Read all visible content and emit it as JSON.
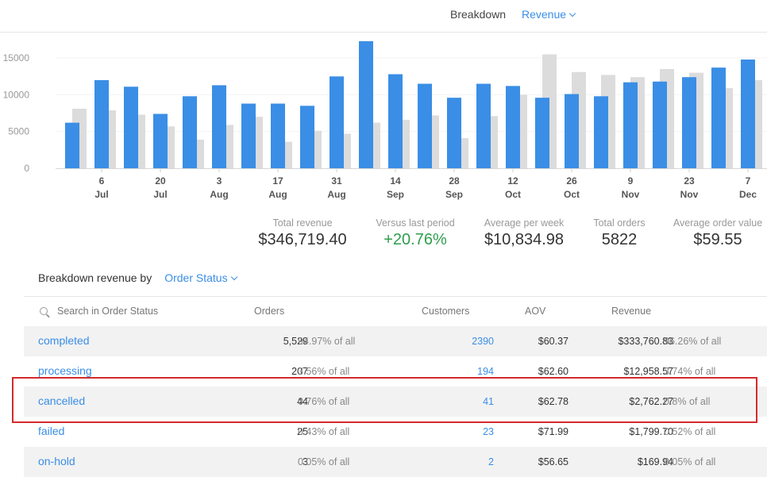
{
  "header": {
    "breakdown_label": "Breakdown",
    "breakdown_value": "Revenue"
  },
  "chart_data": {
    "type": "bar",
    "ylim": [
      0,
      17500
    ],
    "yticks": [
      0,
      5000,
      10000,
      15000
    ],
    "xticks": [
      {
        "day": "6",
        "month": "Jul"
      },
      {
        "day": "20",
        "month": "Jul"
      },
      {
        "day": "3",
        "month": "Aug"
      },
      {
        "day": "17",
        "month": "Aug"
      },
      {
        "day": "31",
        "month": "Aug"
      },
      {
        "day": "14",
        "month": "Sep"
      },
      {
        "day": "28",
        "month": "Sep"
      },
      {
        "day": "12",
        "month": "Oct"
      },
      {
        "day": "26",
        "month": "Oct"
      },
      {
        "day": "9",
        "month": "Nov"
      },
      {
        "day": "23",
        "month": "Nov"
      },
      {
        "day": "7",
        "month": "Dec"
      }
    ],
    "series": [
      {
        "values": [
          6200,
          12000,
          11100,
          7400,
          9800,
          11300,
          8800,
          8800,
          8500,
          12500,
          17300,
          12800,
          11500,
          9600,
          11500,
          11200,
          9600,
          10100,
          9800,
          11700,
          11800,
          12400,
          13700,
          14800
        ],
        "color": "#3a8ee6"
      },
      {
        "values": [
          8100,
          7900,
          7300,
          5700,
          3900,
          5900,
          7000,
          3600,
          5100,
          4700,
          6200,
          6600,
          7200,
          4100,
          7100,
          10000,
          15500,
          13100,
          12700,
          12400,
          13500,
          13000,
          10900,
          12000
        ],
        "color": "#dcdcdc"
      }
    ]
  },
  "stats": [
    {
      "label": "Total revenue",
      "value": "$346,719.40"
    },
    {
      "label": "Versus last period",
      "value": "+20.76%"
    },
    {
      "label": "Average per week",
      "value": "$10,834.98"
    },
    {
      "label": "Total orders",
      "value": "5822"
    },
    {
      "label": "Average order value",
      "value": "$59.55"
    }
  ],
  "breakdown": {
    "label": "Breakdown revenue by",
    "dimension": "Order Status"
  },
  "table": {
    "search_placeholder": "Search in Order Status",
    "headers": {
      "orders": "Orders",
      "customers": "Customers",
      "aov": "AOV",
      "revenue": "Revenue"
    },
    "rows": [
      {
        "name": "completed",
        "orders": "5,529",
        "orders_pct": "94.97% of all",
        "customers": "2390",
        "aov": "$60.37",
        "revenue": "$333,760.83",
        "revenue_pct": "96.26% of all"
      },
      {
        "name": "processing",
        "orders": "207",
        "orders_pct": "3.56% of all",
        "customers": "194",
        "aov": "$62.60",
        "revenue": "$12,958.57",
        "revenue_pct": "3.74% of all"
      },
      {
        "name": "cancelled",
        "orders": "44",
        "orders_pct": "0.76% of all",
        "customers": "41",
        "aov": "$62.78",
        "revenue": "$2,762.27",
        "revenue_pct": "0.8% of all"
      },
      {
        "name": "failed",
        "orders": "25",
        "orders_pct": "0.43% of all",
        "customers": "23",
        "aov": "$71.99",
        "revenue": "$1,799.70",
        "revenue_pct": "0.52% of all"
      },
      {
        "name": "on-hold",
        "orders": "3",
        "orders_pct": "0.05% of all",
        "customers": "2",
        "aov": "$56.65",
        "revenue": "$169.94",
        "revenue_pct": "0.05% of all"
      }
    ]
  },
  "colors": {
    "accent": "#3a8ee6",
    "positive": "#2e9e4e",
    "highlight_border": "#d42a2a"
  }
}
